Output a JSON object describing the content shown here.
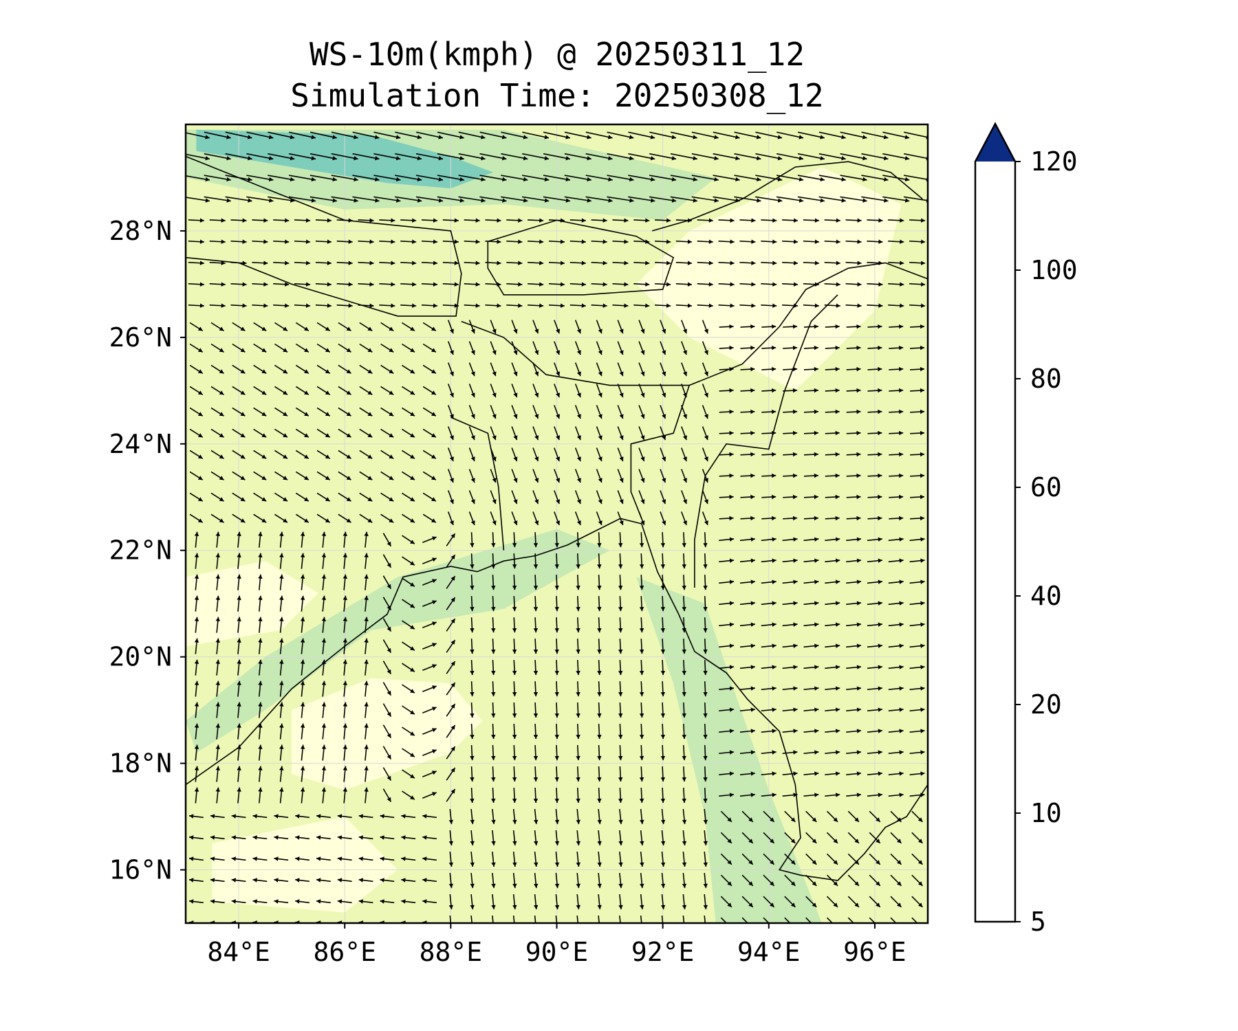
{
  "title": {
    "line1": "WS-10m(kmph) @ 20250311_12",
    "line2": "Simulation Time: 20250308_12"
  },
  "map": {
    "lon_range": [
      83.0,
      97.0
    ],
    "lat_range": [
      15.0,
      30.0
    ],
    "lon_ticks": [
      84,
      86,
      88,
      90,
      92,
      94,
      96
    ],
    "lat_ticks": [
      16,
      18,
      20,
      22,
      24,
      26,
      28
    ],
    "lon_tick_labels": [
      "84°E",
      "86°E",
      "88°E",
      "90°E",
      "92°E",
      "94°E",
      "96°E"
    ],
    "lat_tick_labels": [
      "16°N",
      "18°N",
      "20°N",
      "22°N",
      "24°N",
      "26°N",
      "28°N"
    ],
    "gridlines": true,
    "background_color": "#edf8b6"
  },
  "colorbar": {
    "levels": [
      5,
      10,
      20,
      40,
      60,
      80,
      100,
      120
    ],
    "tick_labels": [
      "5",
      "10",
      "20",
      "40",
      "60",
      "80",
      "100",
      "120"
    ],
    "colors": [
      "#ffffd9",
      "#edf8b1",
      "#c7e9b4",
      "#7fcdbb",
      "#41b6c4",
      "#1d91c0",
      "#225ea8"
    ],
    "extend_color": "#0c2c84",
    "extend": "max"
  },
  "chart_data": {
    "type": "heatmap",
    "title": "WS-10m(kmph) @ 20250311_12",
    "subtitle": "Simulation Time: 20250308_12",
    "xlabel": "",
    "ylabel": "",
    "xlim": [
      83.0,
      97.0
    ],
    "ylim": [
      15.0,
      30.0
    ],
    "units": "kmph",
    "regions": [
      {
        "level": "20-40",
        "note_lonlat": [
          [
            83.0,
            29.9
          ],
          [
            89.0,
            29.9
          ],
          [
            93.0,
            29.0
          ],
          [
            92.0,
            28.2
          ],
          [
            89.0,
            28.5
          ],
          [
            86.0,
            28.4
          ],
          [
            83.0,
            29.0
          ]
        ]
      },
      {
        "level": "40-60",
        "note_lonlat": [
          [
            83.2,
            29.9
          ],
          [
            86.5,
            29.8
          ],
          [
            88.0,
            29.4
          ],
          [
            88.8,
            29.1
          ],
          [
            88.0,
            28.8
          ],
          [
            86.8,
            28.9
          ],
          [
            85.0,
            29.2
          ],
          [
            83.2,
            29.5
          ]
        ]
      },
      {
        "level": "20-40",
        "note_lonlat": [
          [
            87.0,
            21.5
          ],
          [
            90.0,
            22.4
          ],
          [
            91.0,
            22.0
          ],
          [
            89.0,
            20.9
          ],
          [
            86.5,
            20.5
          ],
          [
            84.5,
            19.0
          ],
          [
            83.2,
            18.2
          ],
          [
            83.0,
            18.8
          ],
          [
            84.5,
            20.0
          ]
        ]
      },
      {
        "level": "20-40",
        "note_lonlat": [
          [
            91.5,
            21.5
          ],
          [
            92.8,
            21.0
          ],
          [
            93.3,
            19.5
          ],
          [
            94.0,
            17.5
          ],
          [
            95.0,
            15.0
          ],
          [
            93.0,
            15.0
          ],
          [
            92.8,
            17.0
          ],
          [
            92.2,
            19.5
          ]
        ]
      },
      {
        "level": "5-10",
        "note_lonlat": [
          [
            85.0,
            19.0
          ],
          [
            86.5,
            19.6
          ],
          [
            88.0,
            19.5
          ],
          [
            88.6,
            18.8
          ],
          [
            88.0,
            18.2
          ],
          [
            86.0,
            17.5
          ],
          [
            85.0,
            17.8
          ]
        ]
      },
      {
        "level": "5-10",
        "note_lonlat": [
          [
            83.0,
            21.5
          ],
          [
            84.5,
            21.8
          ],
          [
            85.5,
            21.2
          ],
          [
            84.8,
            20.5
          ],
          [
            83.0,
            20.2
          ]
        ]
      },
      {
        "level": "5-10",
        "note_lonlat": [
          [
            92.5,
            28.0
          ],
          [
            95.0,
            29.2
          ],
          [
            96.5,
            28.5
          ],
          [
            96.0,
            26.5
          ],
          [
            94.5,
            25.0
          ],
          [
            92.5,
            26.0
          ],
          [
            91.5,
            27.0
          ]
        ]
      },
      {
        "level": "5-10",
        "note_lonlat": [
          [
            83.5,
            16.5
          ],
          [
            86.0,
            17.0
          ],
          [
            87.0,
            16.0
          ],
          [
            86.0,
            15.2
          ],
          [
            83.5,
            15.4
          ]
        ]
      }
    ],
    "wind_vectors": {
      "lon_step": 0.4,
      "lat_step": 0.4,
      "patterns": [
        {
          "area": "north (lat>28.5)",
          "u": 1.0,
          "v": -0.15,
          "speed": "strong"
        },
        {
          "area": "Nepal/Bihar (26-28.5N, <90E)",
          "u": 1.0,
          "v": 0.0,
          "speed": "moderate"
        },
        {
          "area": "west coast (<88E, 17-22N)",
          "u": 0.0,
          "v": 1.0,
          "speed": "moderate"
        },
        {
          "area": "Bay of Bengal (18-22N, 88-92E)",
          "u": 0.0,
          "v": -1.0,
          "speed": "moderate"
        },
        {
          "area": "south (15-17N)",
          "u": -1.0,
          "v": 0.1,
          "speed": "moderate"
        },
        {
          "area": "east (>93E, 20-26N)",
          "u": 1.0,
          "v": 0.0,
          "speed": "moderate"
        }
      ]
    },
    "legend": "colorbar-right"
  }
}
